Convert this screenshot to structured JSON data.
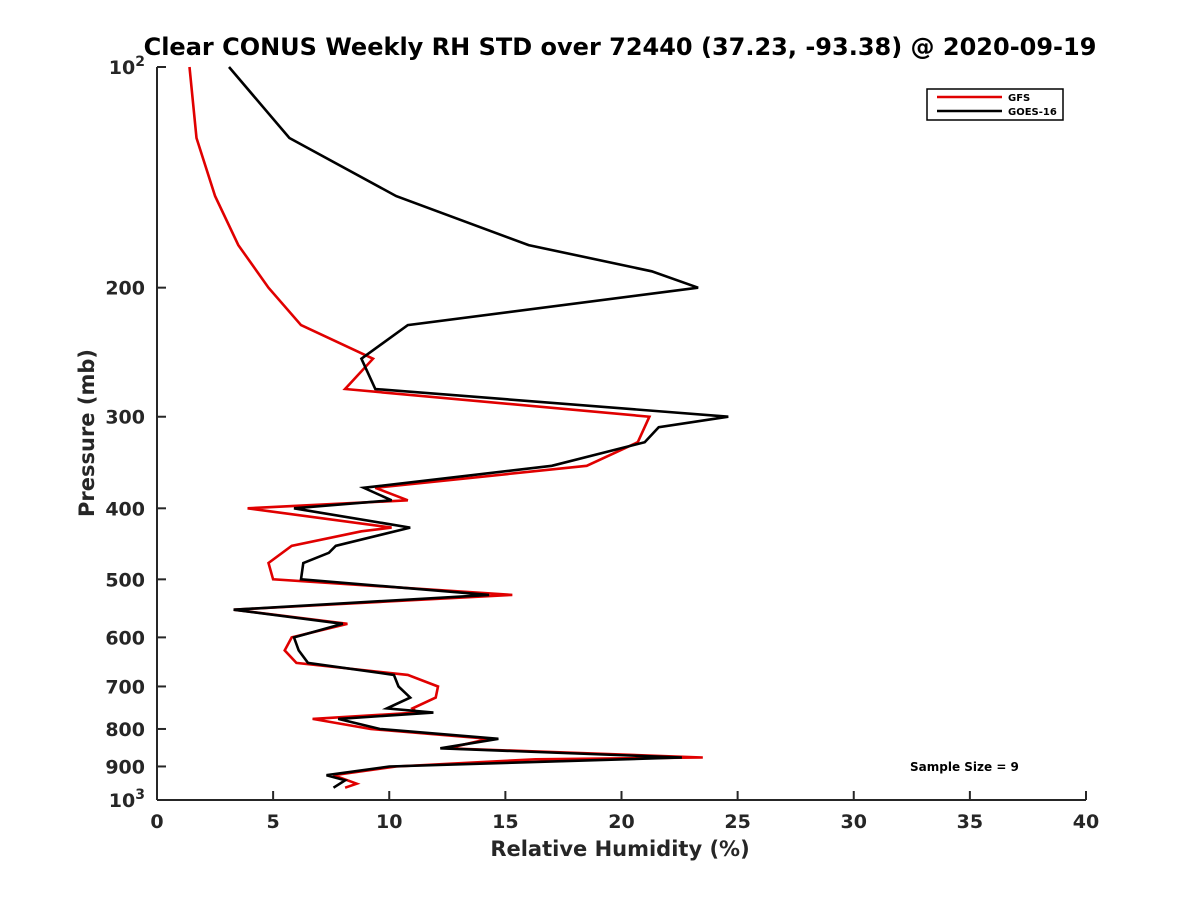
{
  "chart_data": {
    "type": "line",
    "title": "Clear CONUS Weekly RH STD over 72440 (37.23, -93.38) @ 2020-09-19",
    "xlabel": "Relative Humidity (%)",
    "ylabel": "Pressure (mb)",
    "xlim": [
      0,
      40
    ],
    "ylim": [
      100,
      1000
    ],
    "y_scale": "log",
    "y_reversed": true,
    "grid": false,
    "legend_position": "top-right",
    "x_ticks": [
      {
        "value": 0,
        "label": "0"
      },
      {
        "value": 5,
        "label": "5"
      },
      {
        "value": 10,
        "label": "10"
      },
      {
        "value": 15,
        "label": "15"
      },
      {
        "value": 20,
        "label": "20"
      },
      {
        "value": 25,
        "label": "25"
      },
      {
        "value": 30,
        "label": "30"
      },
      {
        "value": 35,
        "label": "35"
      },
      {
        "value": 40,
        "label": "40"
      }
    ],
    "y_ticks": [
      {
        "value": 100,
        "base": "10",
        "exp": "2"
      },
      {
        "value": 200,
        "label": "200"
      },
      {
        "value": 300,
        "label": "300"
      },
      {
        "value": 400,
        "label": "400"
      },
      {
        "value": 500,
        "label": "500"
      },
      {
        "value": 600,
        "label": "600"
      },
      {
        "value": 700,
        "label": "700"
      },
      {
        "value": 800,
        "label": "800"
      },
      {
        "value": 900,
        "label": "900"
      },
      {
        "value": 1000,
        "base": "10",
        "exp": "3"
      }
    ],
    "series": [
      {
        "name": "GFS",
        "color": "#e00000",
        "points": [
          [
            1.4,
            100
          ],
          [
            1.7,
            125
          ],
          [
            2.5,
            150
          ],
          [
            3.5,
            175
          ],
          [
            4.8,
            200
          ],
          [
            6.2,
            225
          ],
          [
            9.3,
            250
          ],
          [
            8.1,
            275
          ],
          [
            21.2,
            300
          ],
          [
            20.7,
            325
          ],
          [
            18.5,
            350
          ],
          [
            9.4,
            375
          ],
          [
            10.8,
            390
          ],
          [
            3.9,
            400
          ],
          [
            10.1,
            425
          ],
          [
            8.8,
            430
          ],
          [
            5.8,
            450
          ],
          [
            4.8,
            475
          ],
          [
            5.0,
            500
          ],
          [
            15.3,
            525
          ],
          [
            3.3,
            550
          ],
          [
            8.2,
            575
          ],
          [
            5.8,
            600
          ],
          [
            5.5,
            625
          ],
          [
            6.0,
            650
          ],
          [
            10.8,
            675
          ],
          [
            12.1,
            700
          ],
          [
            12.0,
            725
          ],
          [
            11.0,
            750
          ],
          [
            11.2,
            760
          ],
          [
            6.7,
            775
          ],
          [
            9.2,
            800
          ],
          [
            14.3,
            825
          ],
          [
            12.5,
            850
          ],
          [
            23.5,
            875
          ],
          [
            16.3,
            880
          ],
          [
            10.3,
            900
          ],
          [
            7.6,
            925
          ],
          [
            8.6,
            950
          ],
          [
            8.1,
            962
          ]
        ]
      },
      {
        "name": "GOES-16",
        "color": "#000000",
        "points": [
          [
            3.1,
            100
          ],
          [
            5.7,
            125
          ],
          [
            10.3,
            150
          ],
          [
            16.0,
            175
          ],
          [
            21.3,
            190
          ],
          [
            23.3,
            200
          ],
          [
            10.8,
            225
          ],
          [
            8.8,
            250
          ],
          [
            9.4,
            275
          ],
          [
            24.6,
            300
          ],
          [
            21.6,
            310
          ],
          [
            21.0,
            325
          ],
          [
            17.0,
            350
          ],
          [
            8.9,
            375
          ],
          [
            10.1,
            390
          ],
          [
            5.9,
            400
          ],
          [
            10.9,
            425
          ],
          [
            7.7,
            450
          ],
          [
            7.4,
            460
          ],
          [
            6.3,
            475
          ],
          [
            6.2,
            500
          ],
          [
            14.3,
            525
          ],
          [
            3.3,
            550
          ],
          [
            8.0,
            575
          ],
          [
            5.9,
            600
          ],
          [
            6.1,
            625
          ],
          [
            6.5,
            650
          ],
          [
            10.2,
            675
          ],
          [
            10.4,
            700
          ],
          [
            10.9,
            725
          ],
          [
            9.9,
            750
          ],
          [
            11.9,
            760
          ],
          [
            7.8,
            775
          ],
          [
            9.6,
            800
          ],
          [
            14.7,
            825
          ],
          [
            12.2,
            850
          ],
          [
            22.6,
            875
          ],
          [
            10.0,
            900
          ],
          [
            7.3,
            925
          ],
          [
            8.1,
            940
          ],
          [
            7.6,
            962
          ]
        ]
      }
    ],
    "annotations": [
      {
        "text": "Sample Size = 9",
        "x": 35,
        "y": 900
      }
    ]
  }
}
